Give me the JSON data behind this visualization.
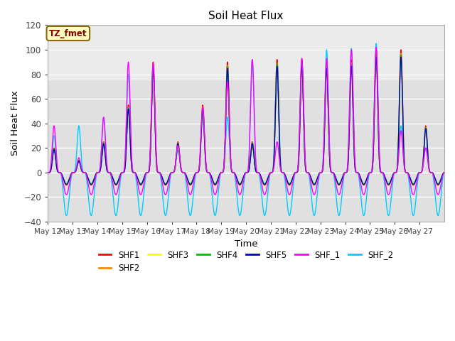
{
  "title": "Soil Heat Flux",
  "ylabel": "Soil Heat Flux",
  "xlabel": "Time",
  "ylim": [
    -40,
    120
  ],
  "annotation_text": "TZ_fmet",
  "annotation_color": "#8B0000",
  "annotation_bg": "#FFFFC0",
  "annotation_border": "#8B6914",
  "series_labels": [
    "SHF1",
    "SHF2",
    "SHF3",
    "SHF4",
    "SHF5",
    "SHF_1",
    "SHF_2"
  ],
  "series_colors": [
    "#FF0000",
    "#FF8C00",
    "#FFFF00",
    "#00BB00",
    "#0000CC",
    "#FF00FF",
    "#00CCFF"
  ],
  "background_color": "#E0E0E0",
  "grid_color": "#FFFFFF",
  "n_days": 16,
  "n_pts_per_day": 288,
  "start_day": 12,
  "xtick_days": [
    12,
    13,
    14,
    15,
    16,
    17,
    18,
    19,
    20,
    21,
    22,
    23,
    24,
    25,
    26,
    27
  ],
  "legend_ncol": 6
}
